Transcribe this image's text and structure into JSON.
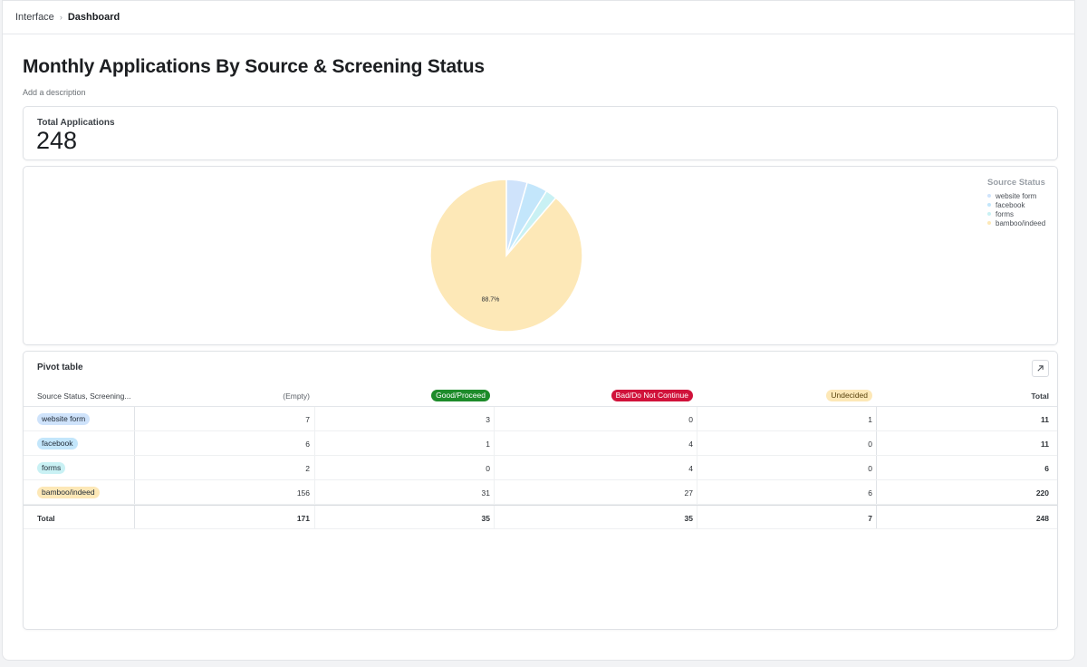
{
  "breadcrumb": {
    "first": "Interface",
    "current": "Dashboard"
  },
  "page": {
    "title": "Monthly Applications By Source & Screening Status",
    "description": "Add a description"
  },
  "summary": {
    "label": "Total Applications",
    "value": "248"
  },
  "chart_data": {
    "type": "pie",
    "legend_title": "Source Status",
    "legend_position": "top-right",
    "labels": [
      "website form",
      "facebook",
      "forms",
      "bamboo/indeed"
    ],
    "values": [
      11,
      11,
      6,
      220
    ],
    "colors": [
      "#cfe3fb",
      "#c3e6fb",
      "#c9f1f4",
      "#fde8b7"
    ],
    "slice_labels": [
      "",
      "",
      "",
      "88.7%"
    ]
  },
  "pivot": {
    "title": "Pivot table",
    "expand_icon": "arrow-up-right-icon",
    "row_header": "Source Status, Screening...",
    "columns": [
      {
        "label": "(Empty)",
        "color": ""
      },
      {
        "label": "Good/Proceed",
        "color": "#1d8b2a"
      },
      {
        "label": "Bad/Do Not Continue",
        "color": "#d0123a"
      },
      {
        "label": "Undecided",
        "color": "#fde8b7"
      }
    ],
    "total_header": "Total",
    "rows": [
      {
        "label": "website form",
        "color": "#cfe3fb",
        "values": [
          "7",
          "3",
          "0",
          "1"
        ],
        "total": "11"
      },
      {
        "label": "facebook",
        "color": "#c3e6fb",
        "values": [
          "6",
          "1",
          "4",
          "0"
        ],
        "total": "11"
      },
      {
        "label": "forms",
        "color": "#c9f1f4",
        "values": [
          "2",
          "0",
          "4",
          "0"
        ],
        "total": "6"
      },
      {
        "label": "bamboo/indeed",
        "color": "#fde8b7",
        "values": [
          "156",
          "31",
          "27",
          "6"
        ],
        "total": "220"
      }
    ],
    "totals": {
      "label": "Total",
      "values": [
        "171",
        "35",
        "35",
        "7"
      ],
      "total": "248"
    }
  }
}
